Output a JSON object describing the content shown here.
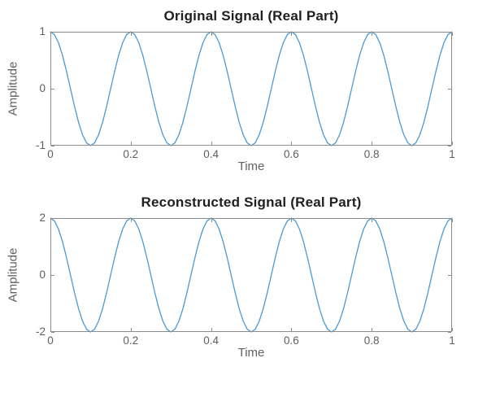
{
  "figure": {
    "background_color": "#ffffff",
    "line_color": "#4a9ad6",
    "axis_color": "#8c8c8c",
    "tick_label_color": "#5e5e5e",
    "axis_label_color": "#616161",
    "title_color": "#1f1f1f"
  },
  "chart_data": [
    {
      "type": "line",
      "title": "Original Signal (Real Part)",
      "xlabel": "Time",
      "ylabel": "Amplitude",
      "xlim": [
        0,
        1
      ],
      "ylim": [
        -1,
        1
      ],
      "xticks": [
        0,
        0.2,
        0.4,
        0.6,
        0.8,
        1
      ],
      "xticklabels": [
        "0",
        "0.2",
        "0.4",
        "0.6",
        "0.8",
        "1"
      ],
      "yticks": [
        -1,
        0,
        1
      ],
      "yticklabels": [
        "-1",
        "0",
        "1"
      ],
      "grid": false,
      "box": true,
      "legend": null,
      "series": [
        {
          "name": "original signal",
          "description": "cosine, amplitude 1, 5 cycles over [0,1]",
          "amplitude": 1,
          "frequency_hz": 5,
          "x_start": 0,
          "x_step": 0.01,
          "n_points": 101,
          "y": [
            1,
            0.951,
            0.809,
            0.588,
            0.309,
            0,
            -0.309,
            -0.588,
            -0.809,
            -0.951,
            -1,
            -0.951,
            -0.809,
            -0.588,
            -0.309,
            0,
            0.309,
            0.588,
            0.809,
            0.951,
            1,
            0.951,
            0.809,
            0.588,
            0.309,
            0,
            -0.309,
            -0.588,
            -0.809,
            -0.951,
            -1,
            -0.951,
            -0.809,
            -0.588,
            -0.309,
            0,
            0.309,
            0.588,
            0.809,
            0.951,
            1,
            0.951,
            0.809,
            0.588,
            0.309,
            0,
            -0.309,
            -0.588,
            -0.809,
            -0.951,
            -1,
            -0.951,
            -0.809,
            -0.588,
            -0.309,
            0,
            0.309,
            0.588,
            0.809,
            0.951,
            1,
            0.951,
            0.809,
            0.588,
            0.309,
            0,
            -0.309,
            -0.588,
            -0.809,
            -0.951,
            -1,
            -0.951,
            -0.809,
            -0.588,
            -0.309,
            0,
            0.309,
            0.588,
            0.809,
            0.951,
            1,
            0.951,
            0.809,
            0.588,
            0.309,
            0,
            -0.309,
            -0.588,
            -0.809,
            -0.951,
            -1,
            -0.951,
            -0.809,
            -0.588,
            -0.309,
            0,
            0.309,
            0.588,
            0.809,
            0.951,
            1
          ]
        }
      ]
    },
    {
      "type": "line",
      "title": "Reconstructed Signal (Real Part)",
      "xlabel": "Time",
      "ylabel": "Amplitude",
      "xlim": [
        0,
        1
      ],
      "ylim": [
        -2,
        2
      ],
      "xticks": [
        0,
        0.2,
        0.4,
        0.6,
        0.8,
        1
      ],
      "xticklabels": [
        "0",
        "0.2",
        "0.4",
        "0.6",
        "0.8",
        "1"
      ],
      "yticks": [
        -2,
        0,
        2
      ],
      "yticklabels": [
        "-2",
        "0",
        "2"
      ],
      "grid": false,
      "box": true,
      "legend": null,
      "series": [
        {
          "name": "reconstructed signal",
          "description": "cosine, amplitude 2, 5 cycles over [0,1]",
          "amplitude": 2,
          "frequency_hz": 5,
          "x_start": 0,
          "x_step": 0.01,
          "n_points": 101,
          "y": [
            2,
            1.902,
            1.618,
            1.176,
            0.618,
            0,
            -0.618,
            -1.176,
            -1.618,
            -1.902,
            -2,
            -1.902,
            -1.618,
            -1.176,
            -0.618,
            0,
            0.618,
            1.176,
            1.618,
            1.902,
            2,
            1.902,
            1.618,
            1.176,
            0.618,
            0,
            -0.618,
            -1.176,
            -1.618,
            -1.902,
            -2,
            -1.902,
            -1.618,
            -1.176,
            -0.618,
            0,
            0.618,
            1.176,
            1.618,
            1.902,
            2,
            1.902,
            1.618,
            1.176,
            0.618,
            0,
            -0.618,
            -1.176,
            -1.618,
            -1.902,
            -2,
            -1.902,
            -1.618,
            -1.176,
            -0.618,
            0,
            0.618,
            1.176,
            1.618,
            1.902,
            2,
            1.902,
            1.618,
            1.176,
            0.618,
            0,
            -0.618,
            -1.176,
            -1.618,
            -1.902,
            -2,
            -1.902,
            -1.618,
            -1.176,
            -0.618,
            0,
            0.618,
            1.176,
            1.618,
            1.902,
            2,
            1.902,
            1.618,
            1.176,
            0.618,
            0,
            -0.618,
            -1.176,
            -1.618,
            -1.902,
            -2,
            -1.902,
            -1.618,
            -1.176,
            -0.618,
            0,
            0.618,
            1.176,
            1.618,
            1.902,
            2
          ]
        }
      ]
    }
  ]
}
